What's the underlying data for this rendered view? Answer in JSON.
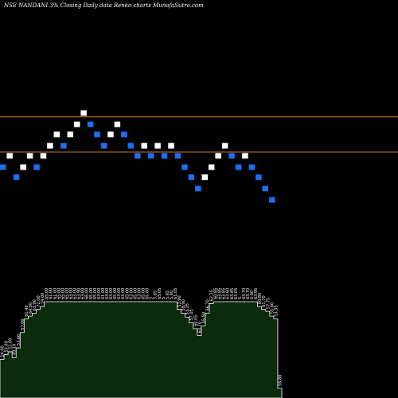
{
  "title": "NSE NANDANI 3% Closing Daily data  Renko  charts MunafaSutra.com",
  "colors": {
    "background": "#000000",
    "up_brick": "#ffffff",
    "down_brick": "#1e6ef0",
    "reference_line": "#c8782a",
    "histogram_fill": "#0c2a0c",
    "histogram_edge": "#ffffff"
  },
  "chart_data": {
    "type": "renko",
    "brick_pct": 3,
    "y_range": [
      45,
      67
    ],
    "reference_lines": [
      60.0,
      57.2
    ],
    "bricks": [
      {
        "dir": "down",
        "value": 56.0
      },
      {
        "dir": "up",
        "value": 56.9
      },
      {
        "dir": "down",
        "value": 55.2
      },
      {
        "dir": "up",
        "value": 56.0
      },
      {
        "dir": "up",
        "value": 56.9
      },
      {
        "dir": "down",
        "value": 56.0
      },
      {
        "dir": "up",
        "value": 56.9
      },
      {
        "dir": "up",
        "value": 57.7
      },
      {
        "dir": "up",
        "value": 58.6
      },
      {
        "dir": "down",
        "value": 57.7
      },
      {
        "dir": "up",
        "value": 58.6
      },
      {
        "dir": "up",
        "value": 59.4
      },
      {
        "dir": "up",
        "value": 60.3
      },
      {
        "dir": "down",
        "value": 59.4
      },
      {
        "dir": "down",
        "value": 58.6
      },
      {
        "dir": "down",
        "value": 57.7
      },
      {
        "dir": "up",
        "value": 58.6
      },
      {
        "dir": "up",
        "value": 59.4
      },
      {
        "dir": "down",
        "value": 58.6
      },
      {
        "dir": "down",
        "value": 57.7
      },
      {
        "dir": "down",
        "value": 56.9
      },
      {
        "dir": "up",
        "value": 57.7
      },
      {
        "dir": "down",
        "value": 56.9
      },
      {
        "dir": "up",
        "value": 57.7
      },
      {
        "dir": "down",
        "value": 56.9
      },
      {
        "dir": "up",
        "value": 57.7
      },
      {
        "dir": "down",
        "value": 56.9
      },
      {
        "dir": "down",
        "value": 56.0
      },
      {
        "dir": "down",
        "value": 55.2
      },
      {
        "dir": "down",
        "value": 54.3
      },
      {
        "dir": "up",
        "value": 55.2
      },
      {
        "dir": "up",
        "value": 56.0
      },
      {
        "dir": "up",
        "value": 56.9
      },
      {
        "dir": "up",
        "value": 57.7
      },
      {
        "dir": "down",
        "value": 56.9
      },
      {
        "dir": "down",
        "value": 56.0
      },
      {
        "dir": "up",
        "value": 56.9
      },
      {
        "dir": "down",
        "value": 56.0
      },
      {
        "dir": "down",
        "value": 55.2
      },
      {
        "dir": "down",
        "value": 54.3
      },
      {
        "dir": "down",
        "value": 53.4
      }
    ],
    "volume_bars": [
      {
        "value": 40,
        "label": "54.00"
      },
      {
        "value": 45,
        "label": "55.00"
      },
      {
        "value": 48,
        "label": "52.00"
      },
      {
        "value": 42,
        "label": "49.10"
      },
      {
        "value": 52,
        "label": "53.60"
      },
      {
        "value": 68,
        "label": "57.00"
      },
      {
        "value": 82,
        "label": "61.40"
      },
      {
        "value": 85,
        "label": "64.00"
      },
      {
        "value": 88,
        "label": "63.90"
      },
      {
        "value": 92,
        "label": "72.00"
      },
      {
        "value": 95,
        "label": "74.00"
      },
      {
        "value": 100,
        "label": "65.00"
      },
      {
        "value": 100,
        "label": "61.00"
      },
      {
        "value": 100,
        "label": "61.00"
      },
      {
        "value": 100,
        "label": "65.00"
      },
      {
        "value": 100,
        "label": "65.00"
      },
      {
        "value": 100,
        "label": "65.00"
      },
      {
        "value": 100,
        "label": "63.00"
      },
      {
        "value": 100,
        "label": "63.00"
      },
      {
        "value": 100,
        "label": "63.90"
      },
      {
        "value": 100,
        "label": "63.00"
      },
      {
        "value": 100,
        "label": "66.00"
      },
      {
        "value": 100,
        "label": "65.00"
      },
      {
        "value": 100,
        "label": "65.00"
      },
      {
        "value": 100,
        "label": "63.00"
      },
      {
        "value": 100,
        "label": "61.00"
      },
      {
        "value": 100,
        "label": "63.00"
      },
      {
        "value": 100,
        "label": "63.00"
      },
      {
        "value": 100,
        "label": "65.00"
      },
      {
        "value": 100,
        "label": "63.00"
      },
      {
        "value": 100,
        "label": "63.00"
      },
      {
        "value": 100,
        "label": "65.00"
      },
      {
        "value": 100,
        "label": "63.00"
      },
      {
        "value": 100,
        "label": "65.00"
      },
      {
        "value": 100,
        "label": "63.00"
      },
      {
        "value": 100,
        "label": "65.00"
      },
      {
        "value": 100,
        "label": "65.00"
      },
      {
        "value": 100,
        "label": "5"
      },
      {
        "value": 100,
        "label": "5.65"
      },
      {
        "value": 100,
        "label": "65.05"
      },
      {
        "value": 100,
        "label": "5"
      },
      {
        "value": 100,
        "label": "5.65"
      },
      {
        "value": 100,
        "label": "5.60"
      },
      {
        "value": 100,
        "label": "61.05"
      },
      {
        "value": 92,
        "label": "53.90"
      },
      {
        "value": 88,
        "label": "58.90"
      },
      {
        "value": 84,
        "label": "53.35"
      },
      {
        "value": 78,
        "label": "57.05"
      },
      {
        "value": 72,
        "label": "60.05"
      },
      {
        "value": 65,
        "label": "63.70"
      },
      {
        "value": 75,
        "label": "55.50"
      },
      {
        "value": 88,
        "label": "56.70"
      },
      {
        "value": 98,
        "label": "62.25"
      },
      {
        "value": 100,
        "label": "60.85"
      },
      {
        "value": 100,
        "label": "63.85"
      },
      {
        "value": 100,
        "label": "63.85"
      },
      {
        "value": 100,
        "label": "63.60"
      },
      {
        "value": 100,
        "label": "63.85"
      },
      {
        "value": 100,
        "label": "63.05"
      },
      {
        "value": 100,
        "label": "5"
      },
      {
        "value": 100,
        "label": "63.70"
      },
      {
        "value": 100,
        "label": "63.70"
      },
      {
        "value": 100,
        "label": "5.60"
      },
      {
        "value": 100,
        "label": "63.95"
      },
      {
        "value": 95,
        "label": "60.85"
      },
      {
        "value": 92,
        "label": "61.70"
      },
      {
        "value": 90,
        "label": "57.75"
      },
      {
        "value": 85,
        "label": "55.00"
      },
      {
        "value": 82,
        "label": "53.35"
      },
      {
        "value": 10,
        "label": "56.80"
      }
    ]
  }
}
